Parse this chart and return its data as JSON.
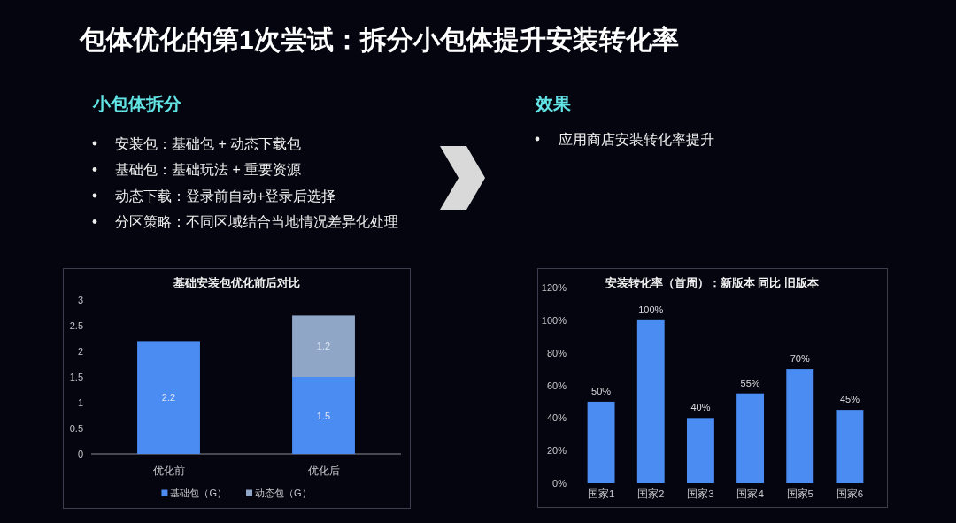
{
  "chart_data": [
    {
      "type": "other",
      "title": "包体优化的第1次尝试：拆分小包体提升安装转化率"
    },
    {
      "type": "other",
      "title": "小包体拆分",
      "annotations": [
        "安装包：基础包 + 动态下载包",
        "基础包：基础玩法 + 重要资源",
        "动态下载：登录前自动+登录后选择",
        "分区策略：不同区域结合当地情况差异化处理"
      ]
    },
    {
      "type": "other",
      "title": "效果",
      "annotations": [
        "应用商店安装转化率提升"
      ]
    },
    {
      "type": "bar",
      "title": "基础安装包优化前后对比",
      "categories": [
        "优化前",
        "优化后"
      ],
      "stacked": true,
      "series": [
        {
          "name": "基础包（G）",
          "color": "#4a8cf2",
          "values": [
            2.2,
            1.5
          ]
        },
        {
          "name": "动态包（G）",
          "color": "#8fa6c6",
          "values": [
            null,
            1.2
          ]
        }
      ],
      "ylim": [
        0,
        3
      ],
      "yticks": [
        0,
        0.5,
        1,
        1.5,
        2,
        2.5,
        3
      ],
      "data_labels": true,
      "legend": "bottom"
    },
    {
      "type": "bar",
      "title": "安装转化率（首周）：新版本 同比 旧版本",
      "categories": [
        "国家1",
        "国家2",
        "国家3",
        "国家4",
        "国家5",
        "国家6"
      ],
      "values": [
        50,
        100,
        40,
        55,
        70,
        45
      ],
      "color": "#4a8cf2",
      "value_labels": [
        "50%",
        "100%",
        "40%",
        "55%",
        "70%",
        "45%"
      ],
      "ylim": [
        0,
        120
      ],
      "yticks": [
        {
          "value": 0,
          "label": "0%"
        },
        {
          "value": 20,
          "label": "20%"
        },
        {
          "value": 40,
          "label": "40%"
        },
        {
          "value": 60,
          "label": "60%"
        },
        {
          "value": 80,
          "label": "80%"
        },
        {
          "value": 100,
          "label": "100%"
        },
        {
          "value": 120,
          "label": "120%"
        }
      ]
    }
  ]
}
